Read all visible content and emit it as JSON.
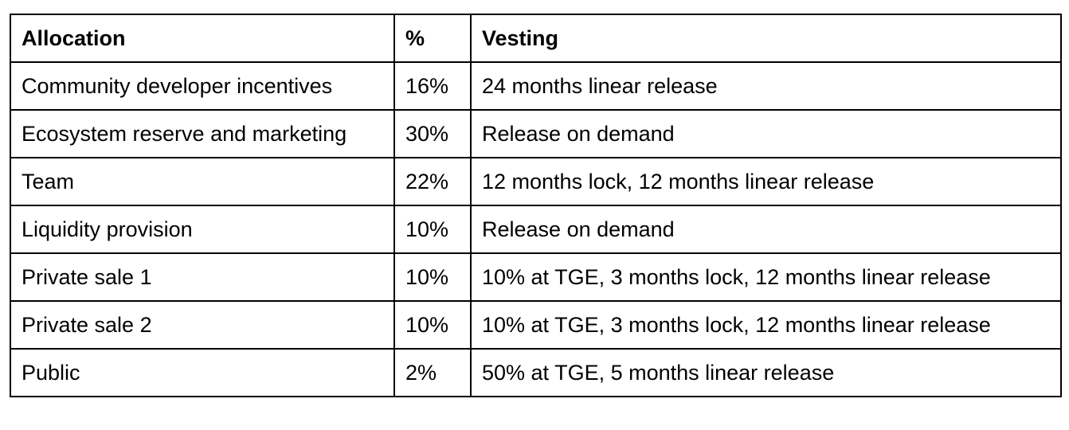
{
  "table": {
    "headers": [
      "Allocation",
      "%",
      "Vesting"
    ],
    "rows": [
      [
        "Community developer incentives",
        "16%",
        "24 months linear release"
      ],
      [
        "Ecosystem reserve and marketing",
        "30%",
        "Release on demand"
      ],
      [
        "Team",
        "22%",
        "12 months lock, 12 months linear release"
      ],
      [
        "Liquidity provision",
        "10%",
        "Release on demand"
      ],
      [
        "Private sale 1",
        "10%",
        "10% at TGE, 3 months lock, 12 months linear release"
      ],
      [
        "Private sale 2",
        "10%",
        "10% at TGE, 3 months lock, 12 months linear release"
      ],
      [
        "Public",
        "2%",
        "50% at TGE, 5 months linear release"
      ]
    ]
  }
}
